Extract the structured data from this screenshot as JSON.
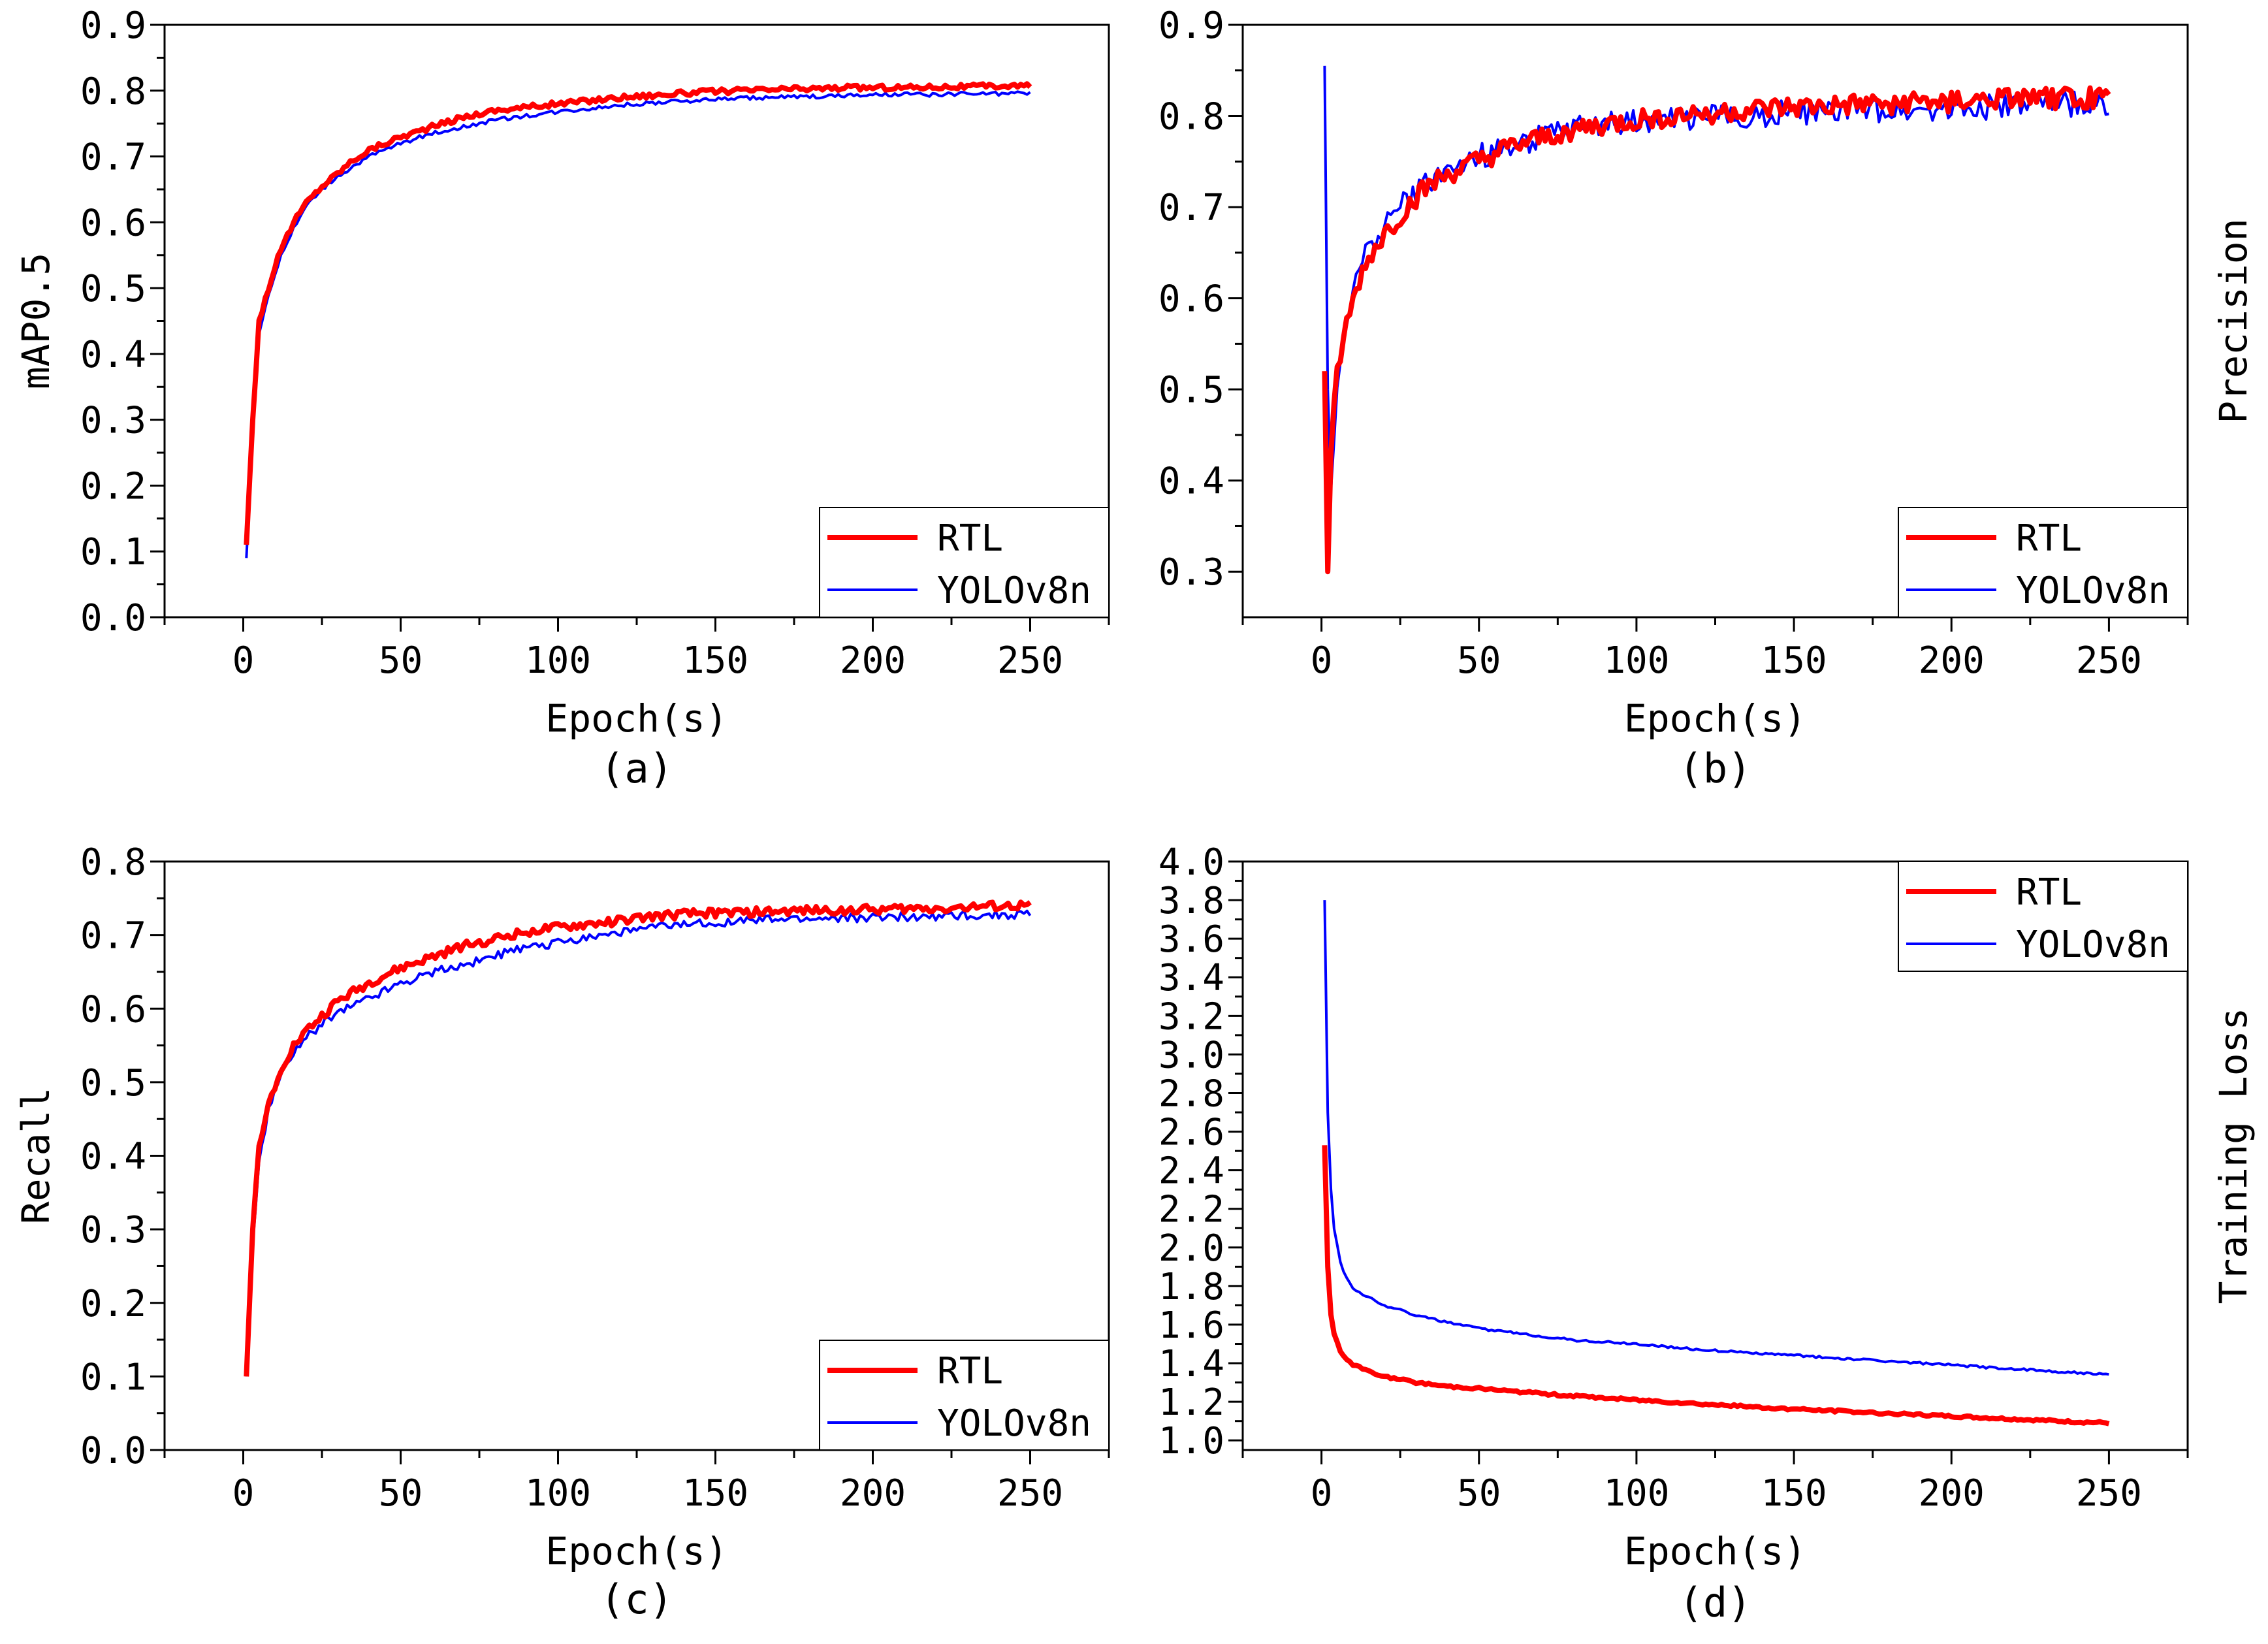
{
  "colors": {
    "rtl": "#ff0000",
    "yolo": "#0000ff",
    "axis": "#000000",
    "background": "#ffffff"
  },
  "chart_data": [
    {
      "id": "a",
      "type": "line",
      "caption": "(a)",
      "xlabel": "Epoch(s)",
      "ylabel": "mAP0.5",
      "ylabel_side": "left",
      "xlim": [
        -25,
        275
      ],
      "ylim": [
        0.0,
        0.9
      ],
      "x_ticks": [
        0,
        50,
        100,
        150,
        200,
        250
      ],
      "x_tick_labels": [
        "0",
        "50",
        "100",
        "150",
        "200",
        "250"
      ],
      "y_ticks": [
        0.0,
        0.1,
        0.2,
        0.3,
        0.4,
        0.5,
        0.6,
        0.7,
        0.8,
        0.9
      ],
      "y_tick_labels": [
        "0.0",
        "0.1",
        "0.2",
        "0.3",
        "0.4",
        "0.5",
        "0.6",
        "0.7",
        "0.8",
        "0.9"
      ],
      "legend": {
        "position": "bottom-right",
        "entries": [
          "RTL",
          "YOLOv8n"
        ]
      },
      "series": [
        {
          "name": "RTL",
          "color_key": "rtl",
          "linewidth": "thick",
          "noise": 0.004,
          "x": [
            1,
            3,
            5,
            8,
            12,
            16,
            20,
            25,
            30,
            35,
            40,
            45,
            50,
            60,
            70,
            80,
            90,
            100,
            110,
            120,
            130,
            140,
            150,
            160,
            170,
            180,
            190,
            200,
            210,
            220,
            230,
            240,
            250
          ],
          "values": [
            0.11,
            0.3,
            0.45,
            0.5,
            0.56,
            0.6,
            0.63,
            0.655,
            0.675,
            0.695,
            0.71,
            0.72,
            0.73,
            0.745,
            0.76,
            0.77,
            0.775,
            0.78,
            0.785,
            0.79,
            0.793,
            0.796,
            0.799,
            0.8,
            0.802,
            0.803,
            0.804,
            0.805,
            0.805,
            0.806,
            0.806,
            0.807,
            0.807
          ]
        },
        {
          "name": "YOLOv8n",
          "color_key": "yolo",
          "linewidth": "thin",
          "noise": 0.003,
          "x": [
            1,
            3,
            5,
            8,
            12,
            16,
            20,
            25,
            30,
            35,
            40,
            45,
            50,
            60,
            70,
            80,
            90,
            100,
            110,
            120,
            130,
            140,
            150,
            160,
            170,
            180,
            190,
            200,
            210,
            220,
            230,
            240,
            250
          ],
          "values": [
            0.09,
            0.28,
            0.43,
            0.49,
            0.55,
            0.59,
            0.625,
            0.65,
            0.67,
            0.685,
            0.7,
            0.71,
            0.72,
            0.735,
            0.745,
            0.755,
            0.762,
            0.768,
            0.773,
            0.778,
            0.781,
            0.784,
            0.787,
            0.789,
            0.79,
            0.791,
            0.792,
            0.793,
            0.794,
            0.794,
            0.795,
            0.795,
            0.796
          ]
        }
      ]
    },
    {
      "id": "b",
      "type": "line",
      "caption": "(b)",
      "xlabel": "Epoch(s)",
      "ylabel": "Precision",
      "ylabel_side": "right",
      "xlim": [
        -25,
        275
      ],
      "ylim": [
        0.25,
        0.9
      ],
      "x_ticks": [
        0,
        50,
        100,
        150,
        200,
        250
      ],
      "x_tick_labels": [
        "0",
        "50",
        "100",
        "150",
        "200",
        "250"
      ],
      "y_ticks": [
        0.3,
        0.4,
        0.5,
        0.6,
        0.7,
        0.8,
        0.9
      ],
      "y_tick_labels": [
        "0.3",
        "0.4",
        "0.5",
        "0.6",
        "0.7",
        "0.8",
        "0.9"
      ],
      "legend": {
        "position": "bottom-right",
        "entries": [
          "RTL",
          "YOLOv8n"
        ]
      },
      "series": [
        {
          "name": "RTL",
          "color_key": "rtl",
          "linewidth": "thick",
          "noise": 0.012,
          "x": [
            1,
            2,
            3,
            5,
            8,
            12,
            16,
            20,
            25,
            30,
            35,
            40,
            50,
            60,
            70,
            80,
            90,
            100,
            110,
            120,
            130,
            140,
            150,
            160,
            170,
            180,
            190,
            200,
            210,
            220,
            230,
            240,
            250
          ],
          "values": [
            0.52,
            0.3,
            0.43,
            0.52,
            0.57,
            0.62,
            0.65,
            0.67,
            0.69,
            0.71,
            0.725,
            0.735,
            0.75,
            0.765,
            0.775,
            0.785,
            0.79,
            0.795,
            0.8,
            0.803,
            0.805,
            0.807,
            0.809,
            0.81,
            0.812,
            0.814,
            0.815,
            0.816,
            0.817,
            0.818,
            0.819,
            0.82,
            0.821
          ]
        },
        {
          "name": "YOLOv8n",
          "color_key": "yolo",
          "linewidth": "thin",
          "noise": 0.014,
          "x": [
            1,
            2,
            3,
            5,
            8,
            12,
            16,
            20,
            25,
            30,
            35,
            40,
            50,
            60,
            70,
            80,
            90,
            100,
            110,
            120,
            130,
            140,
            150,
            160,
            170,
            180,
            190,
            200,
            210,
            220,
            230,
            240,
            250
          ],
          "values": [
            0.855,
            0.5,
            0.39,
            0.5,
            0.58,
            0.63,
            0.66,
            0.68,
            0.7,
            0.715,
            0.73,
            0.74,
            0.755,
            0.768,
            0.777,
            0.785,
            0.79,
            0.794,
            0.797,
            0.799,
            0.8,
            0.802,
            0.804,
            0.805,
            0.806,
            0.807,
            0.808,
            0.809,
            0.81,
            0.811,
            0.812,
            0.813,
            0.814
          ]
        }
      ]
    },
    {
      "id": "c",
      "type": "line",
      "caption": "(c)",
      "xlabel": "Epoch(s)",
      "ylabel": "Recall",
      "ylabel_side": "left",
      "xlim": [
        -25,
        275
      ],
      "ylim": [
        0.0,
        0.8
      ],
      "x_ticks": [
        0,
        50,
        100,
        150,
        200,
        250
      ],
      "x_tick_labels": [
        "0",
        "50",
        "100",
        "150",
        "200",
        "250"
      ],
      "y_ticks": [
        0.0,
        0.1,
        0.2,
        0.3,
        0.4,
        0.5,
        0.6,
        0.7,
        0.8
      ],
      "y_tick_labels": [
        "0.0",
        "0.1",
        "0.2",
        "0.3",
        "0.4",
        "0.5",
        "0.6",
        "0.7",
        "0.8"
      ],
      "legend": {
        "position": "bottom-right",
        "entries": [
          "RTL",
          "YOLOv8n"
        ]
      },
      "series": [
        {
          "name": "RTL",
          "color_key": "rtl",
          "linewidth": "thick",
          "noise": 0.006,
          "x": [
            1,
            3,
            5,
            8,
            12,
            16,
            20,
            25,
            30,
            40,
            50,
            60,
            70,
            80,
            90,
            100,
            110,
            120,
            130,
            140,
            150,
            160,
            170,
            180,
            190,
            200,
            210,
            220,
            230,
            240,
            250
          ],
          "values": [
            0.1,
            0.3,
            0.41,
            0.47,
            0.52,
            0.55,
            0.57,
            0.59,
            0.61,
            0.635,
            0.655,
            0.67,
            0.685,
            0.695,
            0.705,
            0.71,
            0.715,
            0.72,
            0.725,
            0.728,
            0.73,
            0.731,
            0.732,
            0.733,
            0.734,
            0.735,
            0.736,
            0.737,
            0.738,
            0.739,
            0.74
          ]
        },
        {
          "name": "YOLOv8n",
          "color_key": "yolo",
          "linewidth": "thin",
          "noise": 0.006,
          "x": [
            1,
            3,
            5,
            8,
            12,
            16,
            20,
            25,
            30,
            40,
            50,
            60,
            70,
            80,
            90,
            100,
            110,
            120,
            130,
            140,
            150,
            160,
            170,
            180,
            190,
            200,
            210,
            220,
            230,
            240,
            250
          ],
          "values": [
            0.1,
            0.28,
            0.39,
            0.46,
            0.51,
            0.54,
            0.56,
            0.58,
            0.595,
            0.615,
            0.635,
            0.65,
            0.66,
            0.672,
            0.682,
            0.69,
            0.698,
            0.704,
            0.71,
            0.714,
            0.717,
            0.719,
            0.721,
            0.722,
            0.723,
            0.724,
            0.725,
            0.726,
            0.727,
            0.727,
            0.728
          ]
        }
      ]
    },
    {
      "id": "d",
      "type": "line",
      "caption": "(d)",
      "xlabel": "Epoch(s)",
      "ylabel": "Training Loss",
      "ylabel_side": "right",
      "xlim": [
        -25,
        275
      ],
      "ylim": [
        0.95,
        4.0
      ],
      "x_ticks": [
        0,
        50,
        100,
        150,
        200,
        250
      ],
      "x_tick_labels": [
        "0",
        "50",
        "100",
        "150",
        "200",
        "250"
      ],
      "y_ticks": [
        1.0,
        1.2,
        1.4,
        1.6,
        1.8,
        2.0,
        2.2,
        2.4,
        2.6,
        2.8,
        3.0,
        3.2,
        3.4,
        3.6,
        3.8,
        4.0
      ],
      "y_tick_labels": [
        "1.0",
        "1.2",
        "1.4",
        "1.6",
        "1.8",
        "2.0",
        "2.2",
        "2.4",
        "2.6",
        "2.8",
        "3.0",
        "3.2",
        "3.4",
        "3.6",
        "3.8",
        "4.0"
      ],
      "legend": {
        "position": "top-right",
        "entries": [
          "RTL",
          "YOLOv8n"
        ]
      },
      "series": [
        {
          "name": "RTL",
          "color_key": "rtl",
          "linewidth": "thick",
          "noise": 0.006,
          "x": [
            1,
            2,
            3,
            4,
            6,
            8,
            10,
            15,
            20,
            30,
            40,
            50,
            60,
            80,
            100,
            120,
            140,
            160,
            180,
            200,
            220,
            240,
            250
          ],
          "values": [
            2.53,
            1.9,
            1.65,
            1.55,
            1.46,
            1.42,
            1.39,
            1.36,
            1.33,
            1.3,
            1.28,
            1.27,
            1.255,
            1.23,
            1.21,
            1.19,
            1.17,
            1.155,
            1.14,
            1.125,
            1.11,
            1.095,
            1.09
          ]
        },
        {
          "name": "YOLOv8n",
          "color_key": "yolo",
          "linewidth": "thin",
          "noise": 0.006,
          "x": [
            1,
            2,
            3,
            4,
            6,
            8,
            10,
            15,
            20,
            30,
            40,
            50,
            60,
            80,
            100,
            120,
            140,
            160,
            180,
            200,
            220,
            240,
            250
          ],
          "values": [
            3.8,
            2.7,
            2.3,
            2.1,
            1.92,
            1.84,
            1.79,
            1.74,
            1.7,
            1.65,
            1.61,
            1.58,
            1.56,
            1.52,
            1.5,
            1.47,
            1.45,
            1.43,
            1.41,
            1.39,
            1.37,
            1.35,
            1.34
          ]
        }
      ]
    }
  ]
}
